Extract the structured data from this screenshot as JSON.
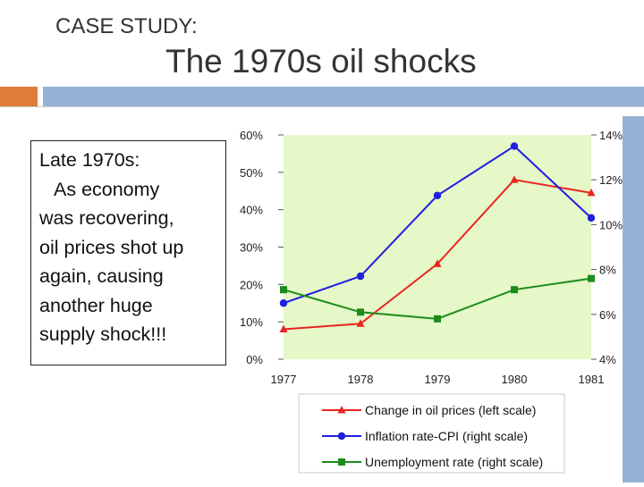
{
  "slide": {
    "subtitle": "CASE STUDY:",
    "title": "The 1970s oil shocks",
    "body_heading": "Late 1970s:",
    "body_line_1": "As economy",
    "body_line_2": "was recovering,",
    "body_line_3": "oil prices shot up",
    "body_line_4": "again, causing",
    "body_line_5": "another huge",
    "body_line_6": "supply shock!!!"
  },
  "colors": {
    "accent_orange": "#e07b39",
    "accent_blue": "#95b3d7",
    "plot_bg": "#e6f7c8"
  },
  "chart_data": {
    "type": "line",
    "categories": [
      "1977",
      "1978",
      "1979",
      "1980",
      "1981"
    ],
    "left_axis": {
      "ylim": [
        0,
        60
      ],
      "ticks": [
        "0%",
        "10%",
        "20%",
        "30%",
        "40%",
        "50%",
        "60%"
      ]
    },
    "right_axis": {
      "ylim": [
        4,
        14
      ],
      "ticks": [
        "4%",
        "6%",
        "8%",
        "10%",
        "12%",
        "14%"
      ]
    },
    "series": [
      {
        "name": "Change in oil prices (left scale)",
        "axis": "left",
        "color": "#e8261f",
        "marker": "triangle",
        "values": [
          8,
          9.5,
          25.5,
          48,
          44.5
        ]
      },
      {
        "name": "Inflation rate-CPI (right scale)",
        "axis": "right",
        "color": "#1f1fe0",
        "marker": "circle",
        "values": [
          6.5,
          7.7,
          11.3,
          13.5,
          10.3
        ]
      },
      {
        "name": "Unemployment rate (right scale)",
        "axis": "right",
        "color": "#1c8c1c",
        "marker": "square",
        "values": [
          7.1,
          6.1,
          5.8,
          7.1,
          7.6
        ]
      }
    ],
    "legend_position": "bottom"
  }
}
